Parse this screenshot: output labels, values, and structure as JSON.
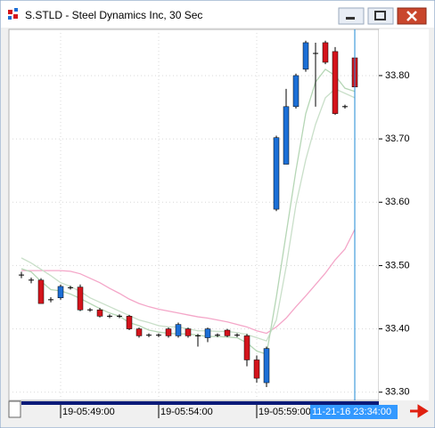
{
  "window_title": "S.STLD - Steel Dynamics Inc, 30 Sec",
  "cursor_label": "11-21-16 23:34:00",
  "chart_data": {
    "type": "candlestick",
    "categories": [
      null,
      null,
      null,
      null,
      "19-05:49:00",
      null,
      null,
      null,
      null,
      null,
      null,
      null,
      null,
      null,
      "19-05:54:00",
      null,
      null,
      null,
      null,
      null,
      null,
      null,
      null,
      null,
      "19-05:59:00",
      null,
      null,
      null,
      null,
      null,
      null,
      null,
      null,
      null,
      null
    ],
    "open": [
      33.485,
      33.477,
      33.477,
      33.446,
      33.449,
      33.465,
      33.466,
      33.43,
      33.43,
      33.42,
      33.42,
      33.42,
      33.4,
      33.39,
      33.39,
      33.4,
      33.389,
      33.4,
      33.389,
      33.386,
      33.39,
      33.398,
      33.39,
      33.389,
      33.351,
      33.315,
      33.589,
      33.66,
      33.751,
      33.81,
      33.835,
      33.852,
      33.838,
      33.751,
      33.828
    ],
    "high": [
      33.49,
      33.481,
      33.48,
      33.45,
      33.47,
      33.468,
      33.47,
      33.433,
      33.433,
      33.423,
      33.423,
      33.422,
      33.402,
      33.393,
      33.393,
      33.402,
      33.41,
      33.402,
      33.392,
      33.402,
      33.393,
      33.4,
      33.393,
      33.392,
      33.358,
      33.372,
      33.705,
      33.779,
      33.803,
      33.855,
      33.852,
      33.855,
      33.845,
      33.754,
      33.832
    ],
    "low": [
      33.48,
      33.472,
      33.44,
      33.442,
      33.446,
      33.462,
      33.428,
      33.427,
      33.418,
      33.417,
      33.417,
      33.398,
      33.386,
      33.387,
      33.387,
      33.386,
      33.386,
      33.386,
      33.372,
      33.379,
      33.387,
      33.387,
      33.387,
      33.341,
      33.315,
      33.308,
      33.586,
      33.66,
      33.748,
      33.806,
      33.751,
      33.818,
      33.738,
      33.748,
      33.772
    ],
    "close": [
      33.485,
      33.477,
      33.44,
      33.446,
      33.467,
      33.465,
      33.43,
      33.43,
      33.42,
      33.42,
      33.42,
      33.4,
      33.389,
      33.39,
      33.39,
      33.389,
      33.407,
      33.389,
      33.389,
      33.4,
      33.39,
      33.389,
      33.39,
      33.351,
      33.322,
      33.369,
      33.702,
      33.751,
      33.8,
      33.852,
      33.835,
      33.821,
      33.74,
      33.751,
      33.782
    ],
    "up_color": "#1c6fd6",
    "down_color": "#d4141c",
    "flat_color": "#000000",
    "overlays": [
      {
        "color": "#f4a6c8",
        "values": [
          33.492,
          33.492,
          33.492,
          33.492,
          33.492,
          33.491,
          33.487,
          33.48,
          33.473,
          33.464,
          33.456,
          33.447,
          33.44,
          33.435,
          33.431,
          33.428,
          33.425,
          33.422,
          33.419,
          33.417,
          33.414,
          33.411,
          33.407,
          33.403,
          33.397,
          33.393,
          33.403,
          33.417,
          33.435,
          33.452,
          33.47,
          33.488,
          33.509,
          33.526,
          33.557
        ]
      },
      {
        "color": "#c9dfc9",
        "values": [
          33.512,
          33.504,
          33.494,
          33.484,
          33.473,
          33.467,
          33.459,
          33.449,
          33.442,
          33.435,
          33.428,
          33.421,
          33.414,
          33.41,
          33.405,
          33.403,
          33.403,
          33.4,
          33.397,
          33.397,
          33.396,
          33.396,
          33.394,
          33.391,
          33.386,
          33.381,
          33.414,
          33.498,
          33.596,
          33.667,
          33.723,
          33.765,
          33.779,
          33.772,
          33.765
        ]
      },
      {
        "color": "#b5d6b5",
        "values": [
          33.495,
          33.49,
          33.475,
          33.462,
          33.46,
          33.455,
          33.448,
          33.44,
          33.432,
          33.425,
          33.42,
          33.41,
          33.405,
          33.398,
          33.395,
          33.393,
          33.392,
          33.392,
          33.39,
          33.388,
          33.388,
          33.387,
          33.386,
          33.378,
          33.365,
          33.36,
          33.45,
          33.55,
          33.65,
          33.74,
          33.79,
          33.81,
          33.8,
          33.78,
          33.775
        ]
      }
    ],
    "ylim": [
      33.287,
      33.873
    ],
    "yticks": [
      {
        "value": 33.3,
        "label": "33.30"
      },
      {
        "value": 33.4,
        "label": "33.40"
      },
      {
        "value": 33.5,
        "label": "33.50"
      },
      {
        "value": 33.6,
        "label": "33.60"
      },
      {
        "value": 33.7,
        "label": "33.70"
      },
      {
        "value": 33.8,
        "label": "33.80"
      }
    ],
    "grid": true
  }
}
